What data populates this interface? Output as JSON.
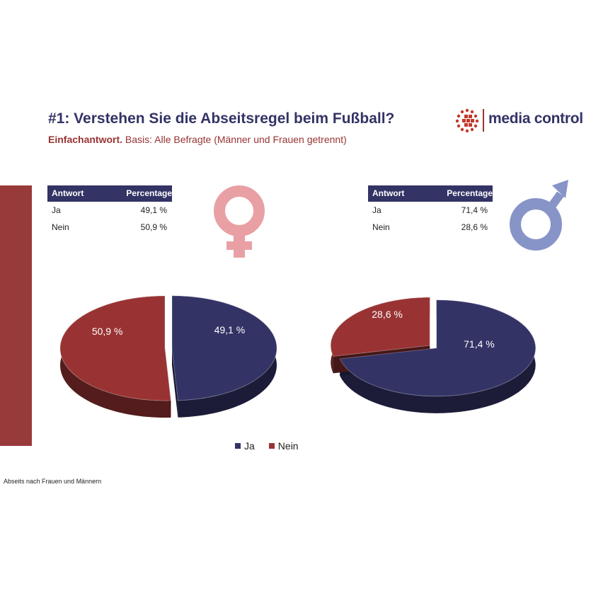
{
  "header": {
    "title": "#1: Verstehen Sie die Abseitsregel beim Fußball?",
    "subtitle_bold": "Einfachantwort.",
    "subtitle_rest": " Basis: Alle Befragte (Männer und Frauen getrennt)",
    "logo_text": "media control"
  },
  "colors": {
    "ja": "#333366",
    "nein": "#993333",
    "female": "#e8a0a4",
    "male": "#8794c8"
  },
  "tables": [
    {
      "col1": "Antwort",
      "col2": "Percentage",
      "rows": [
        {
          "label": "Ja",
          "value": "49,1 %"
        },
        {
          "label": "Nein",
          "value": "50,9 %"
        }
      ]
    },
    {
      "col1": "Antwort",
      "col2": "Percentage",
      "rows": [
        {
          "label": "Ja",
          "value": "71,4 %"
        },
        {
          "label": "Nein",
          "value": "28,6 %"
        }
      ]
    }
  ],
  "chart_data": [
    {
      "type": "pie",
      "group": "female",
      "slices": [
        {
          "name": "Ja",
          "value": 49.1,
          "label": "49,1 %"
        },
        {
          "name": "Nein",
          "value": 50.9,
          "label": "50,9 %"
        }
      ]
    },
    {
      "type": "pie",
      "group": "male",
      "slices": [
        {
          "name": "Ja",
          "value": 71.4,
          "label": "71,4 %"
        },
        {
          "name": "Nein",
          "value": 28.6,
          "label": "28,6 %"
        }
      ]
    }
  ],
  "legend": [
    {
      "name": "Ja"
    },
    {
      "name": "Nein"
    }
  ],
  "footnote": "Abseits nach Frauen und Männern"
}
